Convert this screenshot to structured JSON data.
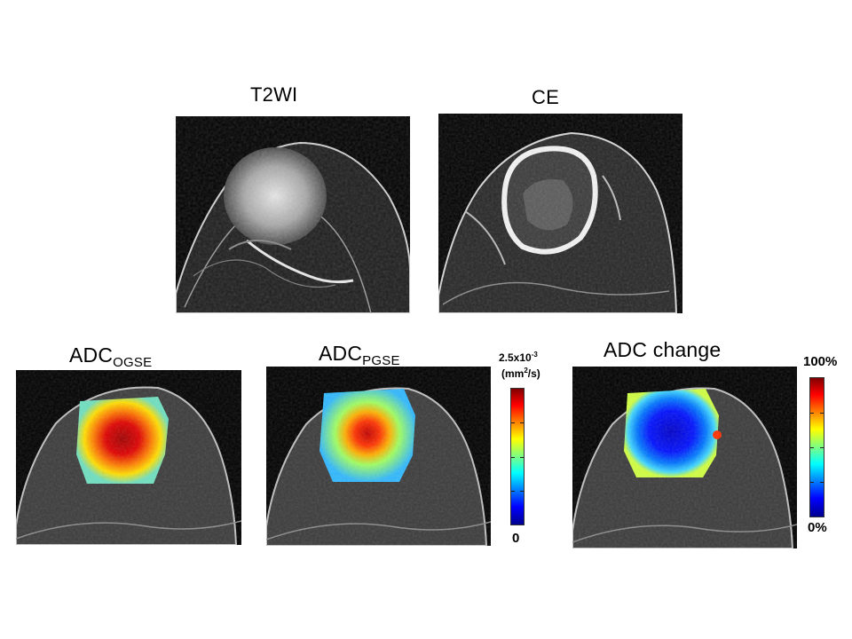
{
  "figure": {
    "panels": {
      "t2wi": {
        "title": "T2WI"
      },
      "ce": {
        "title": "CE"
      },
      "adc_ogse": {
        "title": "ADC",
        "title_sub": "OGSE"
      },
      "adc_pgse": {
        "title": "ADC",
        "title_sub": "PGSE"
      },
      "adc_change": {
        "title": "ADC change"
      }
    },
    "colorbar_adc": {
      "max_label": "2.5x10",
      "max_exp": "-3",
      "units_open": "(mm",
      "units_exp": "2",
      "units_close": "/s)",
      "min_label": "0"
    },
    "colorbar_change": {
      "max_label": "100%",
      "min_label": "0%"
    },
    "colors": {
      "jet_top": "#800000",
      "jet_red": "#ff0000",
      "jet_yellow": "#ffff00",
      "jet_cyan": "#00ffff",
      "jet_blue": "#0000ff",
      "jet_bottom": "#00008f"
    }
  }
}
